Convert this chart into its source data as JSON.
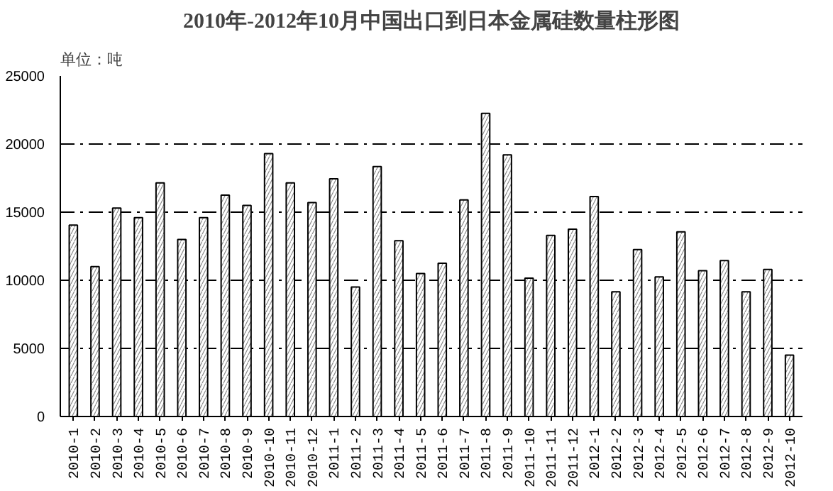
{
  "chart_data": {
    "type": "bar",
    "title": "2010年-2012年10月中国出口到日本金属硅数量柱形图",
    "ylabel": "单位：吨",
    "categories": [
      "2010-1",
      "2010-2",
      "2010-3",
      "2010-4",
      "2010-5",
      "2010-6",
      "2010-7",
      "2010-8",
      "2010-9",
      "2010-10",
      "2010-11",
      "2010-12",
      "2011-1",
      "2011-2",
      "2011-3",
      "2011-4",
      "2011-5",
      "2011-6",
      "2011-7",
      "2011-8",
      "2011-9",
      "2011-10",
      "2011-11",
      "2011-12",
      "2012-1",
      "2012-2",
      "2012-3",
      "2012-4",
      "2012-5",
      "2012-6",
      "2012-7",
      "2012-8",
      "2012-9",
      "2012-10"
    ],
    "values": [
      14050,
      11000,
      15300,
      14600,
      17150,
      13000,
      14600,
      16250,
      15500,
      19300,
      17150,
      15700,
      17450,
      9500,
      18350,
      12900,
      10500,
      11250,
      15900,
      22250,
      19200,
      10150,
      13300,
      13750,
      16150,
      9150,
      12250,
      10250,
      13550,
      10700,
      11450,
      9150,
      10800,
      4500
    ],
    "color": "#ffffff",
    "ylim": [
      0,
      25000
    ],
    "yticks": [
      0,
      5000,
      10000,
      15000,
      20000,
      25000
    ],
    "grid": "y"
  }
}
